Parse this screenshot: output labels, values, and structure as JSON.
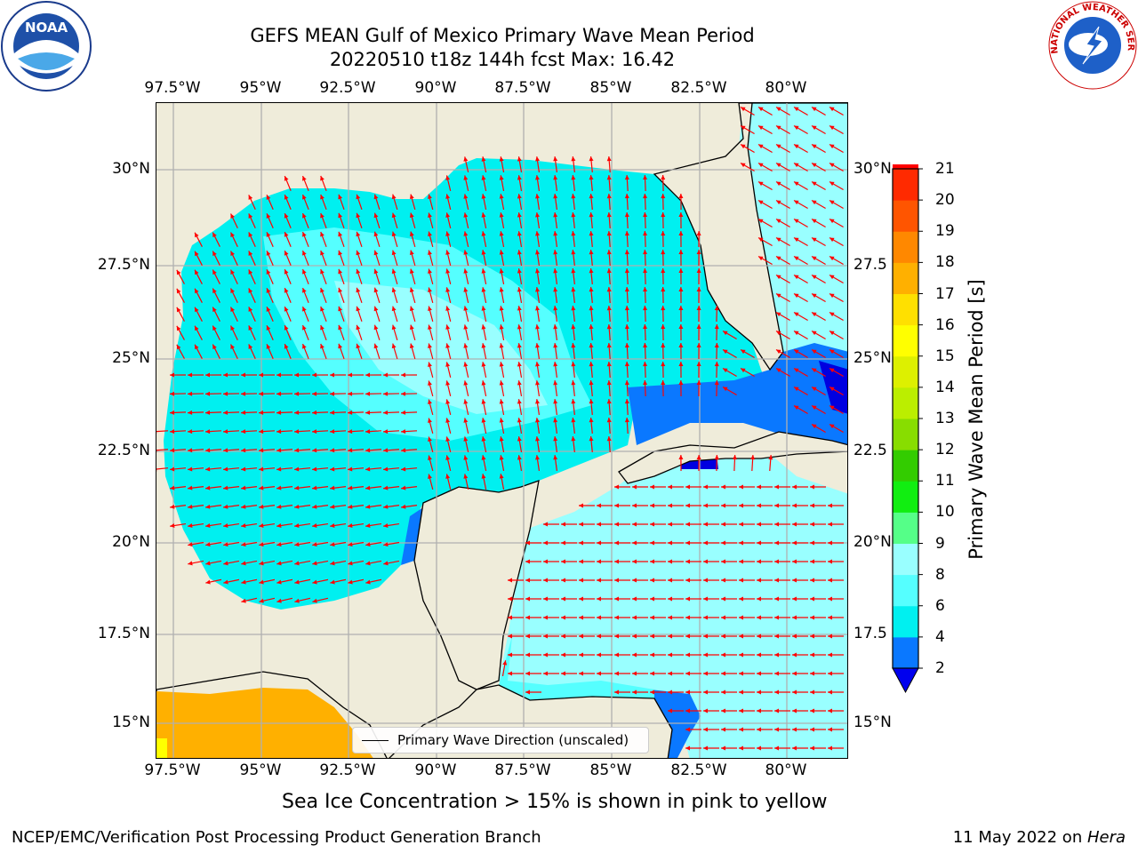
{
  "header": {
    "title_line1": "GEFS MEAN Gulf of Mexico Primary Wave Mean Period",
    "title_line2": "20220510 t18z 144h fcst   Max: 16.42"
  },
  "map": {
    "lon_ticks": [
      "97.5°W",
      "95°W",
      "92.5°W",
      "90°W",
      "87.5°W",
      "85°W",
      "82.5°W",
      "80°W"
    ],
    "lat_ticks_left": [
      "30°N",
      "27.5°N",
      "25°N",
      "22.5°N",
      "20°N",
      "17.5°N",
      "15°N"
    ],
    "lat_ticks_right": [
      "30°N",
      "27.5",
      "25°N",
      "22.5",
      "20°N",
      "17.5",
      "15°N"
    ],
    "colors": {
      "land": "#efecda",
      "ocean_4_6": "#00f0f0",
      "ocean_6_8": "#55ffff",
      "ocean_8_9": "#99ffff",
      "ocean_2_4": "#0a78ff",
      "ocean_lt2": "#0000e0",
      "orange": "#ffb000",
      "arrow": "#ff0000",
      "grid": "#b0b0b0"
    }
  },
  "legend": {
    "label": "Primary Wave Direction (unscaled)"
  },
  "colorbar": {
    "label": "Primary Wave Mean Period [s]",
    "ticks": [
      "2",
      "4",
      "6",
      "8",
      "9",
      "10",
      "11",
      "12",
      "13",
      "14",
      "15",
      "16",
      "17",
      "18",
      "19",
      "20",
      "21"
    ],
    "colors": [
      "#0a78ff",
      "#00f0f0",
      "#55ffff",
      "#99ffff",
      "#55ff88",
      "#11ee11",
      "#33cc00",
      "#88dd00",
      "#bbee00",
      "#ddf000",
      "#ffff00",
      "#ffe000",
      "#ffb000",
      "#ff8800",
      "#ff5500",
      "#ff2a00",
      "#ff0000"
    ],
    "under_color": "#0000ee"
  },
  "subtitle": "Sea Ice Concentration > 15% is shown in pink to yellow",
  "footer": {
    "left": "NCEP/EMC/Verification Post Processing Product Generation Branch",
    "date": "11 May 2022 on ",
    "host": "Hera"
  },
  "logos": {
    "noaa": "NOAA",
    "nws": "NATIONAL WEATHER SERVICE"
  }
}
